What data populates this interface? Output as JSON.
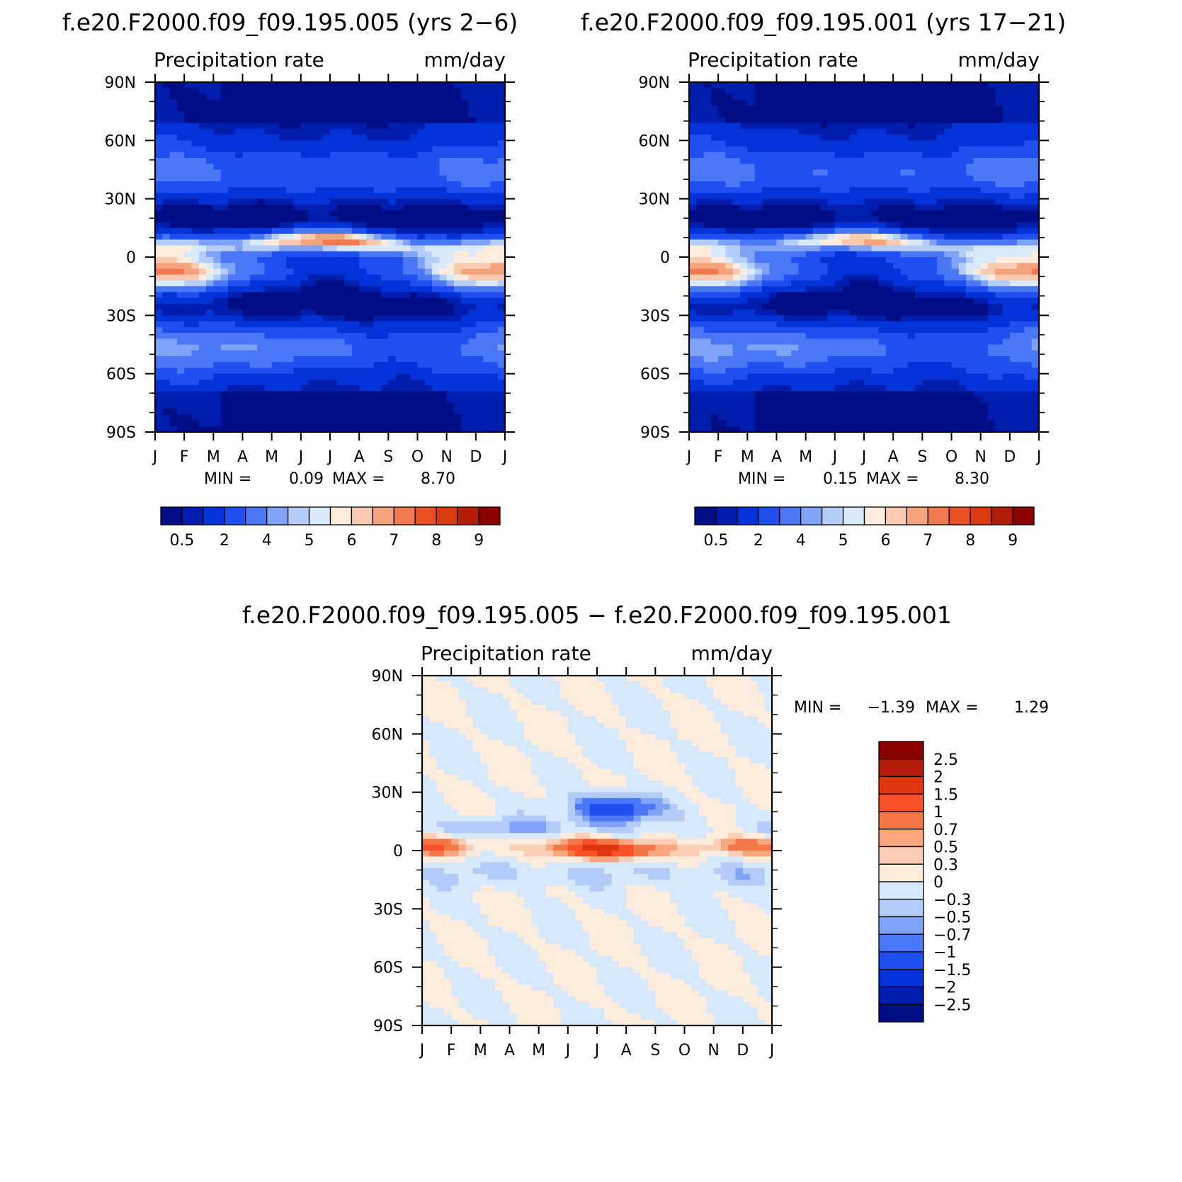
{
  "chart_data": [
    {
      "type": "heatmap",
      "title": "f.e20.F2000.f09_f09.195.005 (yrs 2−6)",
      "left_label": "Precipitation rate",
      "right_label": "mm/day",
      "x_ticks": [
        "J",
        "F",
        "M",
        "A",
        "M",
        "J",
        "J",
        "A",
        "S",
        "O",
        "N",
        "D",
        "J"
      ],
      "y_ticks": [
        "90N",
        "60N",
        "30N",
        "0",
        "30S",
        "60S",
        "90S"
      ],
      "min_label": "MIN =",
      "min_value": "0.09",
      "max_label": "MAX =",
      "max_value": "8.70",
      "colorbar": {
        "orientation": "horizontal",
        "labels": [
          "0.5",
          "2",
          "4",
          "5",
          "6",
          "7",
          "8",
          "9"
        ],
        "colors": [
          "#000e86",
          "#001eae",
          "#0233d8",
          "#1f4ff0",
          "#4a77f5",
          "#7fa3f6",
          "#b5cdf9",
          "#d9e9fc",
          "#fdebdc",
          "#f9c9b0",
          "#f5a37d",
          "#f07a4e",
          "#ea5022",
          "#d93a10",
          "#b41c08",
          "#8c0000"
        ]
      },
      "pattern": {
        "description": "seasonal cycle of zonal-mean precipitation",
        "itcz_max": 8.7
      }
    },
    {
      "type": "heatmap",
      "title": "f.e20.F2000.f09_f09.195.001 (yrs 17−21)",
      "left_label": "Precipitation rate",
      "right_label": "mm/day",
      "x_ticks": [
        "J",
        "F",
        "M",
        "A",
        "M",
        "J",
        "J",
        "A",
        "S",
        "O",
        "N",
        "D",
        "J"
      ],
      "y_ticks": [
        "90N",
        "60N",
        "30N",
        "0",
        "30S",
        "60S",
        "90S"
      ],
      "min_label": "MIN =",
      "min_value": "0.15",
      "max_label": "MAX =",
      "max_value": "8.30",
      "colorbar": {
        "orientation": "horizontal",
        "labels": [
          "0.5",
          "2",
          "4",
          "5",
          "6",
          "7",
          "8",
          "9"
        ],
        "colors": [
          "#000e86",
          "#001eae",
          "#0233d8",
          "#1f4ff0",
          "#4a77f5",
          "#7fa3f6",
          "#b5cdf9",
          "#d9e9fc",
          "#fdebdc",
          "#f9c9b0",
          "#f5a37d",
          "#f07a4e",
          "#ea5022",
          "#d93a10",
          "#b41c08",
          "#8c0000"
        ]
      },
      "pattern": {
        "itcz_max": 8.3
      }
    },
    {
      "type": "heatmap",
      "title": "f.e20.F2000.f09_f09.195.005 − f.e20.F2000.f09_f09.195.001",
      "left_label": "Precipitation rate",
      "right_label": "mm/day",
      "x_ticks": [
        "J",
        "F",
        "M",
        "A",
        "M",
        "J",
        "J",
        "A",
        "S",
        "O",
        "N",
        "D",
        "J"
      ],
      "y_ticks": [
        "90N",
        "60N",
        "30N",
        "0",
        "30S",
        "60S",
        "90S"
      ],
      "min_label": "MIN =",
      "min_value": "−1.39",
      "max_label": "MAX =",
      "max_value": "1.29",
      "colorbar": {
        "orientation": "vertical",
        "labels": [
          "2.5",
          "2",
          "1.5",
          "1",
          "0.7",
          "0.5",
          "0.3",
          "0",
          "−0.3",
          "−0.5",
          "−0.7",
          "−1",
          "−1.5",
          "−2",
          "−2.5"
        ],
        "colors": [
          "#8c0000",
          "#b41c08",
          "#e03510",
          "#fb5128",
          "#f57646",
          "#f9a57d",
          "#fccdb4",
          "#fdebdb",
          "#d6e8fc",
          "#b2cbf9",
          "#7fa3f6",
          "#4a77f5",
          "#1f4ff0",
          "#0233d8",
          "#001eae",
          "#000e86"
        ]
      }
    }
  ],
  "colors": {
    "axis": "#000000",
    "background": "#ffffff"
  }
}
